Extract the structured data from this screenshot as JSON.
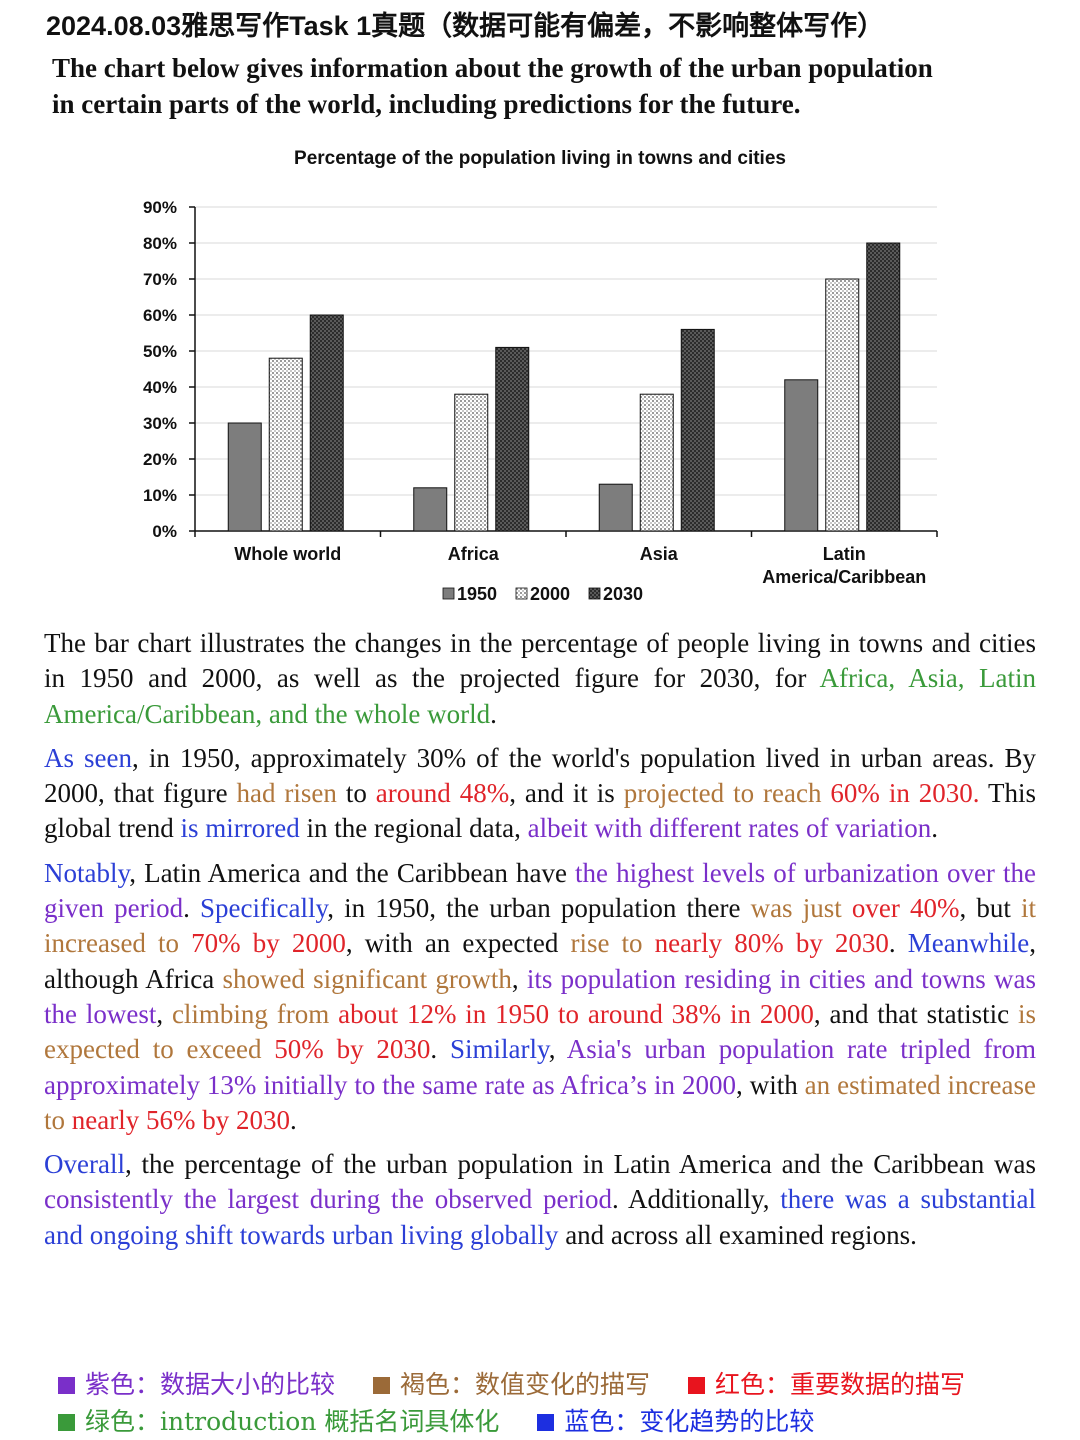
{
  "header": {
    "title": "2024.08.03雅思写作Task 1真题（数据可能有偏差，不影响整体写作）"
  },
  "prompt": {
    "line1": "The chart below gives information about the growth of the urban population",
    "line2": "in certain parts of the world, including predictions for the future."
  },
  "chart_data": {
    "type": "bar",
    "title": "Percentage of the population living in towns and cities",
    "categories": [
      "Whole world",
      "Africa",
      "Asia",
      "Latin America/Caribbean"
    ],
    "category_lines": [
      [
        "Whole world"
      ],
      [
        "Africa"
      ],
      [
        "Asia"
      ],
      [
        "Latin",
        "America/Caribbean"
      ]
    ],
    "series": [
      {
        "name": "1950",
        "values": [
          30,
          12,
          13,
          42
        ],
        "fill": "gray"
      },
      {
        "name": "2000",
        "values": [
          48,
          38,
          38,
          70
        ],
        "fill": "dots"
      },
      {
        "name": "2030",
        "values": [
          60,
          51,
          56,
          80
        ],
        "fill": "checker"
      }
    ],
    "ylim": [
      0,
      90
    ],
    "yticks": [
      0,
      10,
      20,
      30,
      40,
      50,
      60,
      70,
      80,
      90
    ],
    "ytick_labels": [
      "0%",
      "10%",
      "20%",
      "30%",
      "40%",
      "50%",
      "60%",
      "70%",
      "80%",
      "90%"
    ],
    "xlabel": "",
    "ylabel": "",
    "grid": true,
    "legend_position": "bottom"
  },
  "essay": {
    "p1": [
      {
        "t": "The bar chart illustrates the changes in the percentage of people living in towns and cities in 1950 and 2000, as well as the projected figure for 2030, for "
      },
      {
        "t": "Africa, Asia, Latin America/Caribbean, and the whole world",
        "c": "g"
      },
      {
        "t": "."
      }
    ],
    "p2": [
      {
        "t": "As seen",
        "c": "b"
      },
      {
        "t": ", in 1950, approximately 30% of the world's population lived in urban areas. By 2000, that figure "
      },
      {
        "t": "had risen",
        "c": "br"
      },
      {
        "t": " to "
      },
      {
        "t": "around 48%",
        "c": "r"
      },
      {
        "t": ", and it is "
      },
      {
        "t": "projected to reach",
        "c": "br"
      },
      {
        "t": " "
      },
      {
        "t": "60% in 2030.",
        "c": "r"
      },
      {
        "t": " This global trend "
      },
      {
        "t": "is mirrored",
        "c": "b"
      },
      {
        "t": " in the regional data, "
      },
      {
        "t": "albeit with different rates of variation",
        "c": "p"
      },
      {
        "t": "."
      }
    ],
    "p3": [
      {
        "t": "Notably",
        "c": "b"
      },
      {
        "t": ", Latin America and the Caribbean have "
      },
      {
        "t": "the highest levels of urbanization over the given period",
        "c": "p"
      },
      {
        "t": ". "
      },
      {
        "t": "Specifically",
        "c": "b"
      },
      {
        "t": ", in 1950, the urban population there "
      },
      {
        "t": "was just",
        "c": "br"
      },
      {
        "t": " "
      },
      {
        "t": "over 40%",
        "c": "r"
      },
      {
        "t": ", but "
      },
      {
        "t": "it increased to",
        "c": "br"
      },
      {
        "t": " "
      },
      {
        "t": "70% by 2000",
        "c": "r"
      },
      {
        "t": ", with an expected "
      },
      {
        "t": "rise to",
        "c": "br"
      },
      {
        "t": " "
      },
      {
        "t": "nearly 80% by 2030",
        "c": "r"
      },
      {
        "t": ". "
      },
      {
        "t": "Meanwhile",
        "c": "b"
      },
      {
        "t": ", although Africa "
      },
      {
        "t": "showed significant growth",
        "c": "br"
      },
      {
        "t": ", "
      },
      {
        "t": "its population residing in cities and towns was the lowest",
        "c": "p"
      },
      {
        "t": ", "
      },
      {
        "t": "climbing from",
        "c": "br"
      },
      {
        "t": " "
      },
      {
        "t": "about 12% in 1950 to around 38% in 2000",
        "c": "r"
      },
      {
        "t": ", and that statistic "
      },
      {
        "t": "is expected to exceed",
        "c": "br"
      },
      {
        "t": " "
      },
      {
        "t": "50% by 2030",
        "c": "r"
      },
      {
        "t": ". "
      },
      {
        "t": "Similarly",
        "c": "b"
      },
      {
        "t": ", "
      },
      {
        "t": "Asia's urban population rate tripled from approximately 13% initially to the same rate as Africa’s in 2000",
        "c": "p"
      },
      {
        "t": ", with "
      },
      {
        "t": "an estimated increase to",
        "c": "br"
      },
      {
        "t": " "
      },
      {
        "t": "nearly 56% by 2030",
        "c": "r"
      },
      {
        "t": "."
      }
    ],
    "p4": [
      {
        "t": "Overall",
        "c": "b"
      },
      {
        "t": ", the percentage of the urban population in Latin America and the Caribbean was "
      },
      {
        "t": "consistently the largest during the observed period",
        "c": "p"
      },
      {
        "t": ". Additionally, "
      },
      {
        "t": "there was a substantial and ongoing shift towards urban living globally",
        "c": "b"
      },
      {
        "t": " and across all examined regions."
      }
    ]
  },
  "color_key": {
    "colors": {
      "purple": "#7a2fc9",
      "brown": "#9b6a38",
      "red": "#e8141e",
      "green": "#3a9a3a",
      "blue": "#1d2fe0"
    },
    "purple_label": "紫色：数据大小的比较",
    "brown_label": "褐色：数值变化的描写",
    "red_label": "红色：重要数据的描写",
    "green_label": "绿色：introduction 概括名词具体化",
    "blue_label": "蓝色：变化趋势的比较"
  }
}
